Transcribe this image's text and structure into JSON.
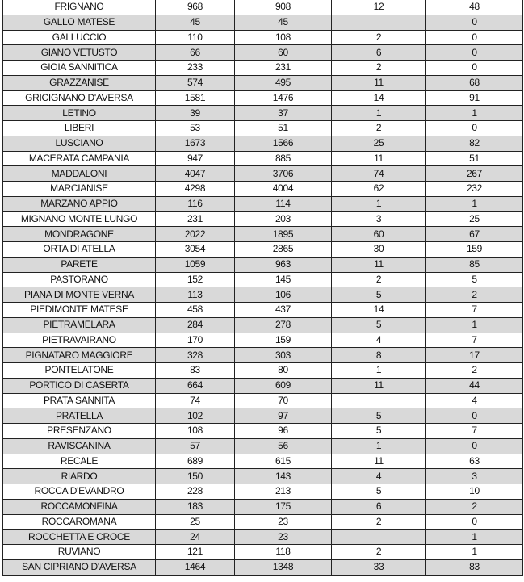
{
  "colors": {
    "alt_row": "#d9d9d9",
    "row": "#ffffff",
    "border": "#222222"
  },
  "rows": [
    [
      "FRIGNANO",
      "968",
      "908",
      "12",
      "48"
    ],
    [
      "GALLO MATESE",
      "45",
      "45",
      "",
      "0"
    ],
    [
      "GALLUCCIO",
      "110",
      "108",
      "2",
      "0"
    ],
    [
      "GIANO VETUSTO",
      "66",
      "60",
      "6",
      "0"
    ],
    [
      "GIOIA SANNITICA",
      "233",
      "231",
      "2",
      "0"
    ],
    [
      "GRAZZANISE",
      "574",
      "495",
      "11",
      "68"
    ],
    [
      "GRICIGNANO D'AVERSA",
      "1581",
      "1476",
      "14",
      "91"
    ],
    [
      "LETINO",
      "39",
      "37",
      "1",
      "1"
    ],
    [
      "LIBERI",
      "53",
      "51",
      "2",
      "0"
    ],
    [
      "LUSCIANO",
      "1673",
      "1566",
      "25",
      "82"
    ],
    [
      "MACERATA CAMPANIA",
      "947",
      "885",
      "11",
      "51"
    ],
    [
      "MADDALONI",
      "4047",
      "3706",
      "74",
      "267"
    ],
    [
      "MARCIANISE",
      "4298",
      "4004",
      "62",
      "232"
    ],
    [
      "MARZANO APPIO",
      "116",
      "114",
      "1",
      "1"
    ],
    [
      "MIGNANO MONTE LUNGO",
      "231",
      "203",
      "3",
      "25"
    ],
    [
      "MONDRAGONE",
      "2022",
      "1895",
      "60",
      "67"
    ],
    [
      "ORTA DI ATELLA",
      "3054",
      "2865",
      "30",
      "159"
    ],
    [
      "PARETE",
      "1059",
      "963",
      "11",
      "85"
    ],
    [
      "PASTORANO",
      "152",
      "145",
      "2",
      "5"
    ],
    [
      "PIANA DI MONTE VERNA",
      "113",
      "106",
      "5",
      "2"
    ],
    [
      "PIEDIMONTE MATESE",
      "458",
      "437",
      "14",
      "7"
    ],
    [
      "PIETRAMELARA",
      "284",
      "278",
      "5",
      "1"
    ],
    [
      "PIETRAVAIRANO",
      "170",
      "159",
      "4",
      "7"
    ],
    [
      "PIGNATARO MAGGIORE",
      "328",
      "303",
      "8",
      "17"
    ],
    [
      "PONTELATONE",
      "83",
      "80",
      "1",
      "2"
    ],
    [
      "PORTICO DI CASERTA",
      "664",
      "609",
      "11",
      "44"
    ],
    [
      "PRATA SANNITA",
      "74",
      "70",
      "",
      "4"
    ],
    [
      "PRATELLA",
      "102",
      "97",
      "5",
      "0"
    ],
    [
      "PRESENZANO",
      "108",
      "96",
      "5",
      "7"
    ],
    [
      "RAVISCANINA",
      "57",
      "56",
      "1",
      "0"
    ],
    [
      "RECALE",
      "689",
      "615",
      "11",
      "63"
    ],
    [
      "RIARDO",
      "150",
      "143",
      "4",
      "3"
    ],
    [
      "ROCCA D'EVANDRO",
      "228",
      "213",
      "5",
      "10"
    ],
    [
      "ROCCAMONFINA",
      "183",
      "175",
      "6",
      "2"
    ],
    [
      "ROCCAROMANA",
      "25",
      "23",
      "2",
      "0"
    ],
    [
      "ROCCHETTA E CROCE",
      "24",
      "23",
      "",
      "1"
    ],
    [
      "RUVIANO",
      "121",
      "118",
      "2",
      "1"
    ],
    [
      "SAN CIPRIANO D'AVERSA",
      "1464",
      "1348",
      "33",
      "83"
    ]
  ]
}
